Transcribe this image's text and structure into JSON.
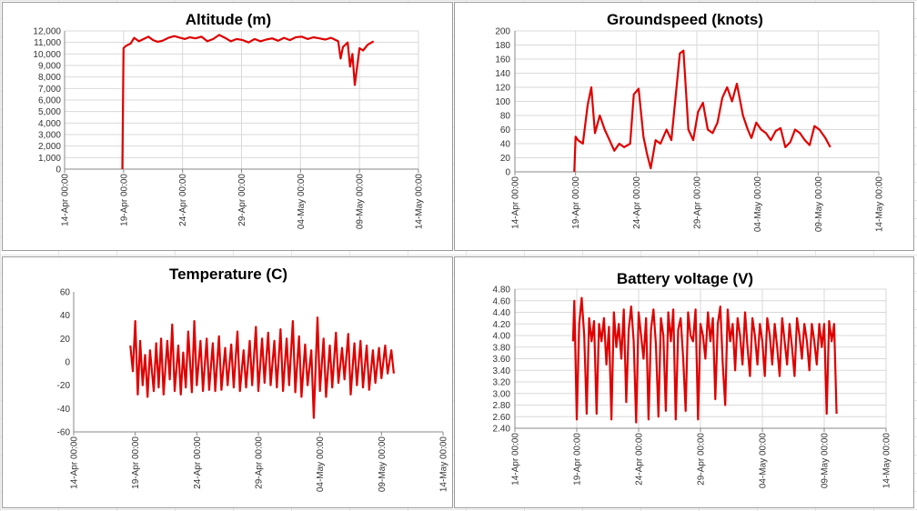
{
  "charts_layout": "2x2",
  "chart_data": [
    {
      "type": "line",
      "title": "Altitude (m)",
      "xlabel": "",
      "ylabel": "",
      "x_ticks": [
        "14-Apr 00:00",
        "19-Apr 00:00",
        "24-Apr 00:00",
        "29-Apr 00:00",
        "04-May 00:00",
        "09-May 00:00",
        "14-May 00:00"
      ],
      "y_ticks": [
        "0",
        "1,000",
        "2,000",
        "3,000",
        "4,000",
        "5,000",
        "6,000",
        "7,000",
        "8,000",
        "9,000",
        "10,000",
        "11,000",
        "12,000"
      ],
      "xlim": [
        0,
        30
      ],
      "ylim": [
        0,
        12000
      ],
      "grid": true,
      "color": "#e00000",
      "series": [
        {
          "x": [
            4.9,
            5.0,
            5.2,
            5.6,
            5.9,
            6.3,
            6.7,
            7.1,
            7.5,
            7.9,
            8.3,
            8.8,
            9.3,
            9.8,
            10.2,
            10.6,
            11.1,
            11.6,
            12.1,
            12.6,
            13.1,
            13.6,
            14.1,
            14.6,
            15.1,
            15.6,
            16.1,
            16.6,
            17.1,
            17.6,
            18.1,
            18.6,
            19.1,
            19.6,
            20.1,
            20.6,
            21.1,
            21.6,
            22.1,
            22.6,
            23.2,
            23.4,
            23.6,
            24.0,
            24.2,
            24.4,
            24.6,
            25.0,
            25.3,
            25.7,
            26.2
          ],
          "y": [
            0,
            10500,
            10700,
            10900,
            11400,
            11100,
            11300,
            11500,
            11200,
            11050,
            11150,
            11400,
            11550,
            11400,
            11300,
            11450,
            11350,
            11500,
            11100,
            11300,
            11650,
            11400,
            11100,
            11300,
            11200,
            11000,
            11300,
            11100,
            11250,
            11350,
            11150,
            11400,
            11200,
            11450,
            11500,
            11300,
            11450,
            11350,
            11250,
            11400,
            11100,
            9600,
            10600,
            11000,
            8900,
            10000,
            7300,
            10500,
            10300,
            10800,
            11100
          ]
        }
      ]
    },
    {
      "type": "line",
      "title": "Groundspeed (knots)",
      "xlabel": "",
      "ylabel": "",
      "x_ticks": [
        "14-Apr 00:00",
        "19-Apr 00:00",
        "24-Apr 00:00",
        "29-Apr 00:00",
        "04-May 00:00",
        "09-May 00:00",
        "14-May 00:00"
      ],
      "y_ticks": [
        "0",
        "20",
        "40",
        "60",
        "80",
        "100",
        "120",
        "140",
        "160",
        "180",
        "200"
      ],
      "xlim": [
        0,
        30
      ],
      "ylim": [
        0,
        200
      ],
      "grid": true,
      "color": "#e00000",
      "series": [
        {
          "x": [
            4.9,
            5.0,
            5.2,
            5.6,
            6.0,
            6.3,
            6.6,
            7.0,
            7.4,
            7.8,
            8.2,
            8.6,
            9.0,
            9.5,
            9.8,
            10.2,
            10.6,
            10.9,
            11.2,
            11.6,
            12.0,
            12.5,
            12.9,
            13.3,
            13.6,
            13.9,
            14.3,
            14.7,
            15.1,
            15.5,
            15.9,
            16.3,
            16.7,
            17.1,
            17.5,
            17.9,
            18.3,
            18.8,
            19.2,
            19.5,
            19.9,
            20.3,
            20.7,
            21.1,
            21.5,
            21.9,
            22.3,
            22.7,
            23.1,
            23.5,
            23.9,
            24.3,
            24.7,
            25.1,
            25.6,
            26.0
          ],
          "y": [
            0,
            50,
            45,
            40,
            95,
            120,
            55,
            80,
            60,
            45,
            30,
            40,
            35,
            40,
            110,
            118,
            50,
            25,
            5,
            45,
            40,
            60,
            45,
            115,
            168,
            172,
            60,
            45,
            85,
            98,
            60,
            55,
            70,
            105,
            120,
            100,
            125,
            80,
            60,
            48,
            70,
            60,
            55,
            45,
            58,
            62,
            35,
            42,
            60,
            55,
            45,
            38,
            65,
            60,
            48,
            35
          ]
        }
      ]
    },
    {
      "type": "line",
      "title": "Temperature (C)",
      "xlabel": "",
      "ylabel": "",
      "x_ticks": [
        "14-Apr 00:00",
        "19-Apr 00:00",
        "24-Apr 00:00",
        "29-Apr 00:00",
        "04-May 00:00",
        "09-May 00:00",
        "14-May 00:00"
      ],
      "y_ticks": [
        "-60",
        "-40",
        "-20",
        "0",
        "20",
        "40",
        "60"
      ],
      "xlim": [
        0,
        30
      ],
      "ylim": [
        -60,
        60
      ],
      "grid": false,
      "color": "#e00000",
      "series": [
        {
          "x": [
            4.6,
            4.8,
            5.0,
            5.2,
            5.4,
            5.6,
            5.8,
            6.0,
            6.2,
            6.5,
            6.7,
            6.9,
            7.1,
            7.3,
            7.6,
            7.8,
            8.0,
            8.2,
            8.5,
            8.7,
            8.9,
            9.1,
            9.3,
            9.6,
            9.8,
            10.0,
            10.3,
            10.5,
            10.8,
            11.0,
            11.3,
            11.5,
            11.8,
            12.0,
            12.3,
            12.5,
            12.8,
            13.0,
            13.3,
            13.5,
            13.8,
            14.0,
            14.3,
            14.5,
            14.8,
            15.0,
            15.3,
            15.5,
            15.8,
            16.0,
            16.3,
            16.5,
            16.8,
            17.0,
            17.3,
            17.5,
            17.8,
            18.0,
            18.3,
            18.5,
            18.8,
            19.0,
            19.3,
            19.5,
            19.8,
            20.0,
            20.3,
            20.5,
            20.8,
            21.0,
            21.3,
            21.5,
            21.8,
            22.0,
            22.3,
            22.5,
            22.8,
            23.0,
            23.3,
            23.5,
            23.8,
            24.0,
            24.3,
            24.5,
            24.8,
            25.0,
            25.3,
            25.5,
            25.8,
            26.0
          ],
          "y": [
            14,
            -8,
            35,
            -28,
            18,
            -20,
            6,
            -30,
            10,
            -25,
            16,
            -22,
            20,
            -28,
            18,
            -15,
            32,
            -25,
            14,
            -28,
            8,
            -22,
            26,
            -26,
            35,
            -20,
            18,
            -25,
            20,
            -24,
            16,
            -25,
            22,
            -24,
            12,
            -20,
            15,
            -22,
            26,
            -25,
            10,
            -22,
            18,
            -20,
            30,
            -25,
            20,
            -18,
            25,
            -20,
            18,
            -22,
            28,
            -25,
            20,
            -20,
            35,
            -26,
            22,
            -30,
            15,
            -20,
            10,
            -48,
            38,
            -25,
            20,
            -30,
            14,
            -22,
            25,
            -18,
            12,
            -15,
            24,
            -28,
            16,
            -20,
            18,
            -22,
            14,
            -24,
            10,
            -18,
            12,
            -14,
            14,
            -10,
            10,
            -10
          ]
        }
      ]
    },
    {
      "type": "line",
      "title": "Battery voltage (V)",
      "xlabel": "",
      "ylabel": "",
      "x_ticks": [
        "14-Apr 00:00",
        "19-Apr 00:00",
        "24-Apr 00:00",
        "29-Apr 00:00",
        "04-May 00:00",
        "09-May 00:00",
        "14-May 00:00"
      ],
      "y_ticks": [
        "2.40",
        "2.60",
        "2.80",
        "3.00",
        "3.20",
        "3.40",
        "3.60",
        "3.80",
        "4.00",
        "4.20",
        "4.40",
        "4.60",
        "4.80"
      ],
      "xlim": [
        0,
        30
      ],
      "ylim": [
        2.4,
        4.8
      ],
      "grid": true,
      "color": "#e00000",
      "series": [
        {
          "x": [
            4.7,
            4.8,
            5.0,
            5.2,
            5.4,
            5.6,
            5.8,
            6.0,
            6.2,
            6.4,
            6.6,
            6.8,
            7.0,
            7.2,
            7.4,
            7.6,
            7.8,
            8.0,
            8.2,
            8.4,
            8.6,
            8.8,
            9.0,
            9.2,
            9.4,
            9.6,
            9.8,
            10.0,
            10.2,
            10.4,
            10.6,
            10.8,
            11.0,
            11.2,
            11.4,
            11.6,
            11.8,
            12.0,
            12.2,
            12.4,
            12.6,
            12.8,
            13.0,
            13.2,
            13.4,
            13.6,
            13.8,
            14.0,
            14.2,
            14.4,
            14.6,
            14.8,
            15.0,
            15.2,
            15.4,
            15.6,
            15.8,
            16.0,
            16.2,
            16.4,
            16.6,
            16.8,
            17.0,
            17.2,
            17.4,
            17.6,
            17.8,
            18.0,
            18.2,
            18.4,
            18.6,
            18.8,
            19.0,
            19.2,
            19.4,
            19.6,
            19.8,
            20.0,
            20.2,
            20.4,
            20.6,
            20.8,
            21.0,
            21.2,
            21.4,
            21.6,
            21.8,
            22.0,
            22.2,
            22.4,
            22.6,
            22.8,
            23.0,
            23.2,
            23.4,
            23.6,
            23.8,
            24.0,
            24.2,
            24.4,
            24.6,
            24.8,
            25.0,
            25.2,
            25.4,
            25.6,
            25.8,
            26.0
          ],
          "y": [
            3.9,
            4.6,
            2.55,
            4.2,
            4.65,
            4.0,
            2.65,
            4.3,
            3.9,
            4.25,
            2.65,
            4.2,
            3.9,
            4.3,
            3.5,
            4.15,
            2.55,
            4.4,
            3.8,
            4.2,
            3.6,
            4.45,
            2.85,
            4.1,
            4.5,
            3.9,
            2.5,
            4.4,
            4.0,
            3.6,
            4.3,
            2.55,
            4.1,
            4.45,
            3.85,
            2.6,
            4.3,
            4.0,
            2.7,
            4.4,
            3.9,
            4.45,
            2.55,
            4.1,
            4.3,
            3.6,
            2.7,
            4.4,
            4.0,
            3.9,
            4.45,
            2.55,
            4.2,
            4.0,
            3.6,
            4.4,
            3.9,
            4.3,
            2.9,
            4.2,
            4.5,
            3.5,
            2.8,
            4.45,
            3.9,
            4.2,
            3.4,
            4.3,
            4.0,
            3.5,
            4.4,
            3.8,
            3.3,
            4.3,
            4.0,
            3.5,
            4.2,
            3.9,
            3.3,
            4.3,
            4.0,
            3.5,
            4.2,
            3.8,
            3.3,
            4.3,
            3.9,
            3.5,
            4.2,
            3.8,
            3.3,
            4.3,
            4.0,
            3.6,
            4.2,
            3.9,
            3.4,
            4.2,
            3.9,
            3.5,
            4.2,
            3.8,
            4.2,
            2.65,
            4.25,
            3.9,
            4.2,
            2.65
          ]
        }
      ]
    }
  ]
}
